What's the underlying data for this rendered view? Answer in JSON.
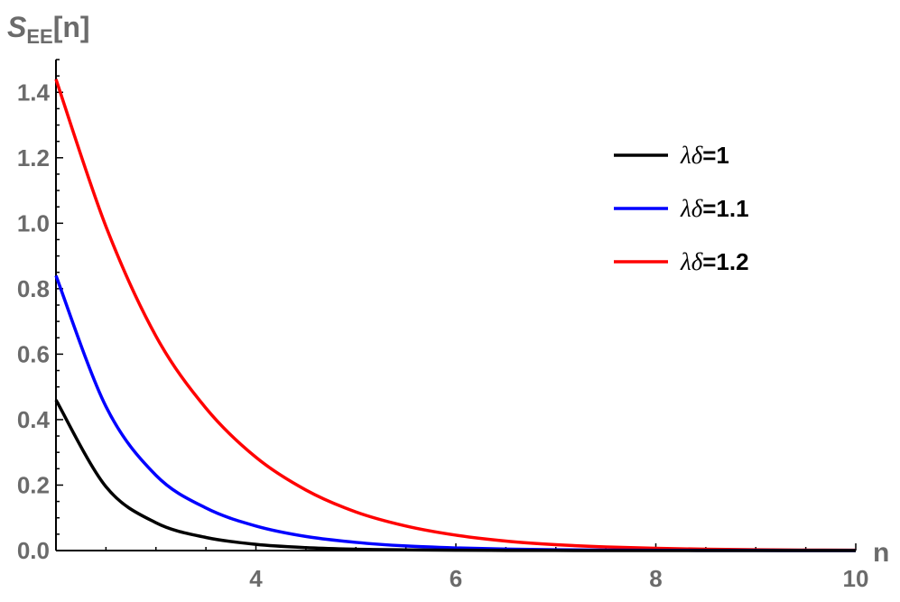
{
  "chart_data": {
    "type": "line",
    "xlabel": "n",
    "ylabel": {
      "main": "S",
      "sub": "EE",
      "suffix": "[n]"
    },
    "xlim": [
      2,
      10
    ],
    "ylim": [
      0,
      1.5
    ],
    "x_ticks": [
      4,
      6,
      8,
      10
    ],
    "x_tick_labels": [
      "4",
      "6",
      "8",
      "10"
    ],
    "y_ticks": [
      0,
      0.2,
      0.4,
      0.6,
      0.8,
      1.0,
      1.2,
      1.4
    ],
    "y_tick_labels": [
      "0.0",
      "0.2",
      "0.4",
      "0.6",
      "0.8",
      "1.0",
      "1.2",
      "1.4"
    ],
    "legend_position": "top-right",
    "grid": false,
    "x": [
      2,
      2.5,
      3,
      3.5,
      4,
      4.5,
      5,
      5.5,
      6,
      6.5,
      7,
      7.5,
      8,
      8.5,
      9,
      9.5,
      10
    ],
    "series": [
      {
        "name_prefix": "λδ",
        "name_value": "=1",
        "color": "#000000",
        "values": [
          0.46,
          0.195,
          0.085,
          0.04,
          0.019,
          0.009,
          0.004,
          0.002,
          0.001,
          0.0005,
          0.0002,
          0.0001,
          0.0001,
          0,
          0,
          0,
          0
        ]
      },
      {
        "name_prefix": "λδ",
        "name_value": "=1.1",
        "color": "#0000ff",
        "values": [
          0.84,
          0.44,
          0.23,
          0.13,
          0.075,
          0.043,
          0.025,
          0.014,
          0.008,
          0.0045,
          0.0025,
          0.0014,
          0.0008,
          0.0004,
          0.0002,
          0.0001,
          0.0001
        ]
      },
      {
        "name_prefix": "λδ",
        "name_value": "=1.2",
        "color": "#ff0000",
        "values": [
          1.44,
          0.99,
          0.655,
          0.435,
          0.285,
          0.185,
          0.118,
          0.075,
          0.047,
          0.029,
          0.018,
          0.011,
          0.0068,
          0.004,
          0.0025,
          0.0015,
          0.0009
        ]
      }
    ]
  }
}
